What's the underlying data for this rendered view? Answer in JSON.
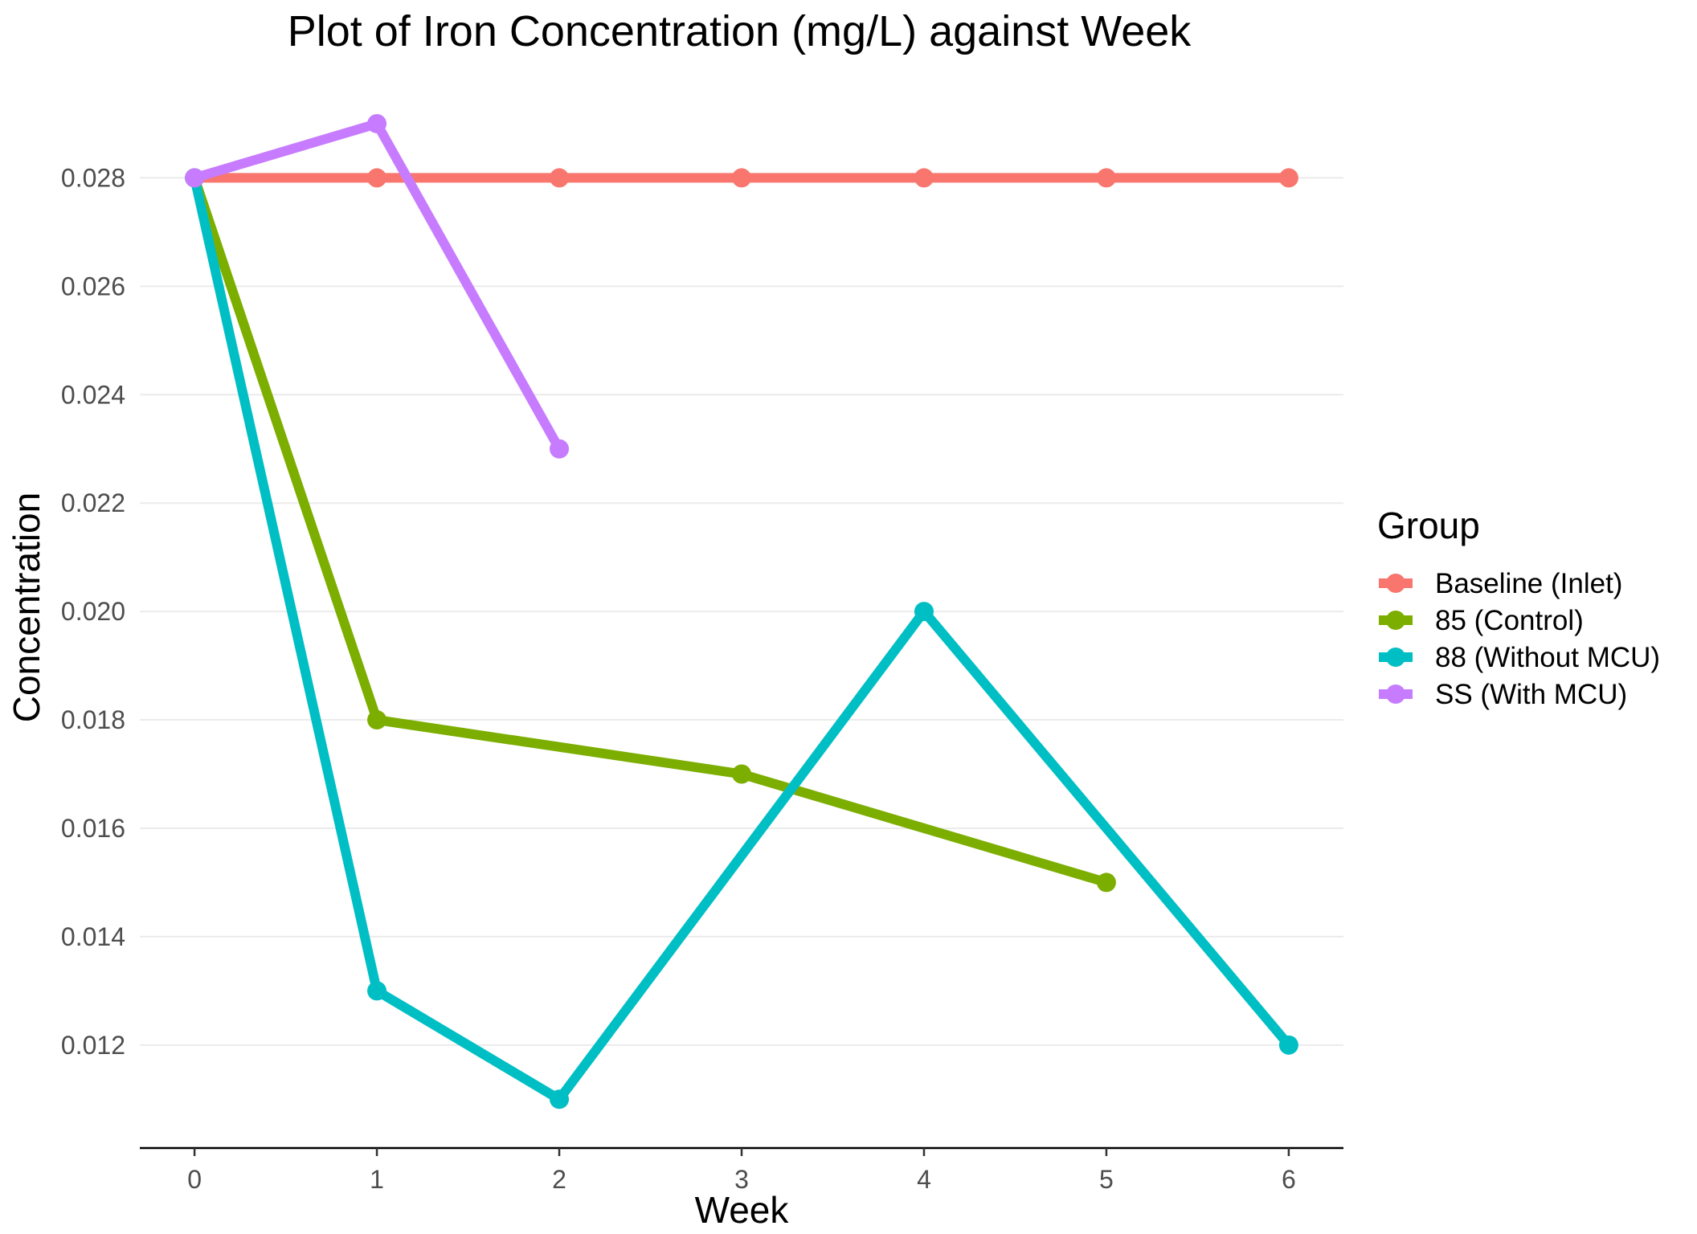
{
  "chart_data": {
    "type": "line",
    "title": "Plot of Iron Concentration (mg/L) against Week",
    "xlabel": "Week",
    "ylabel": "Concentration",
    "xlim": [
      -0.3,
      6.3
    ],
    "ylim": [
      0.0101,
      0.0298
    ],
    "x_ticks": [
      0,
      1,
      2,
      3,
      4,
      5,
      6
    ],
    "y_ticks": [
      0.012,
      0.014,
      0.016,
      0.018,
      0.02,
      0.022,
      0.024,
      0.026,
      0.028
    ],
    "grid": "horizontal major",
    "legend": {
      "title": "Group",
      "position": "right"
    },
    "series": [
      {
        "name": "Baseline (Inlet)",
        "color": "#F8766D",
        "x": [
          0,
          1,
          2,
          3,
          4,
          5,
          6
        ],
        "values": [
          0.028,
          0.028,
          0.028,
          0.028,
          0.028,
          0.028,
          0.028
        ]
      },
      {
        "name": "85 (Control)",
        "color": "#7CAE00",
        "x": [
          0,
          1,
          3,
          5
        ],
        "values": [
          0.028,
          0.018,
          0.017,
          0.015
        ]
      },
      {
        "name": "88 (Without MCU)",
        "color": "#00BFC4",
        "x": [
          0,
          1,
          2,
          4,
          6
        ],
        "values": [
          0.028,
          0.013,
          0.011,
          0.02,
          0.012
        ]
      },
      {
        "name": "SS (With MCU)",
        "color": "#C77CFF",
        "x": [
          0,
          1,
          2
        ],
        "values": [
          0.028,
          0.029,
          0.023
        ]
      }
    ]
  }
}
